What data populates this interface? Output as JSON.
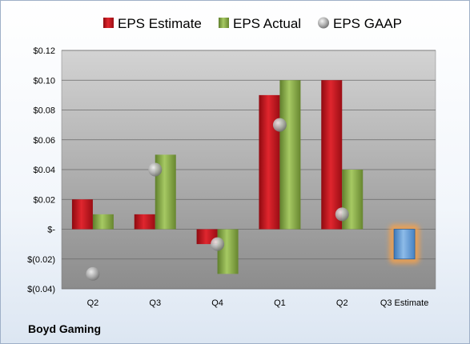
{
  "chart_data": {
    "type": "bar",
    "categories": [
      "Q2",
      "Q3",
      "Q4",
      "Q1",
      "Q2",
      "Q3 Estimate"
    ],
    "series": [
      {
        "name": "EPS Estimate",
        "kind": "bar",
        "color": "#c0141c",
        "values": [
          0.02,
          0.01,
          -0.01,
          0.09,
          0.1,
          -0.02
        ]
      },
      {
        "name": "EPS Actual",
        "kind": "bar",
        "color": "#8cb14a",
        "values": [
          0.01,
          0.05,
          -0.03,
          0.1,
          0.04,
          null
        ]
      },
      {
        "name": "EPS GAAP",
        "kind": "marker",
        "color": "#a6a6a6",
        "values": [
          -0.03,
          0.04,
          -0.01,
          0.07,
          0.01,
          null
        ]
      }
    ],
    "highlight": {
      "category": "Q3 Estimate",
      "color": "#5b9bd5",
      "glow": "#f0a050"
    },
    "ylim": [
      -0.04,
      0.12
    ],
    "y_ticks": [
      {
        "value": 0.12,
        "label": "$0.12"
      },
      {
        "value": 0.1,
        "label": "$0.10"
      },
      {
        "value": 0.08,
        "label": "$0.08"
      },
      {
        "value": 0.06,
        "label": "$0.06"
      },
      {
        "value": 0.04,
        "label": "$0.04"
      },
      {
        "value": 0.02,
        "label": "$0.02"
      },
      {
        "value": 0.0,
        "label": "$-"
      },
      {
        "value": -0.02,
        "label": "$(0.02)"
      },
      {
        "value": -0.04,
        "label": "$(0.04)"
      }
    ],
    "grid": true,
    "legend_position": "top",
    "company": "Boyd Gaming"
  }
}
